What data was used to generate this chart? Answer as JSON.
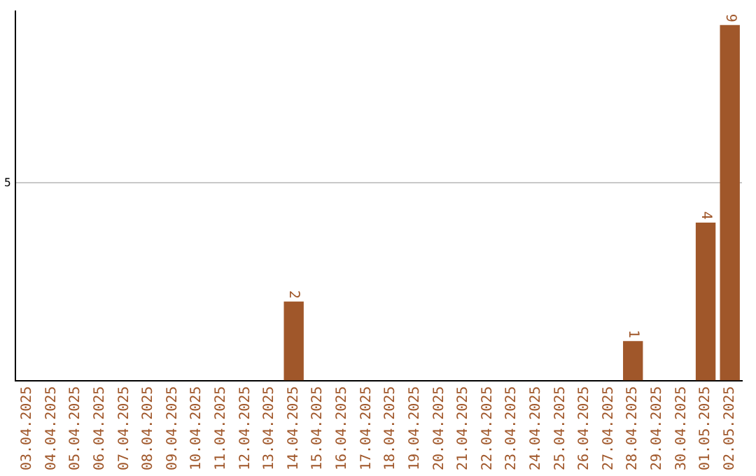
{
  "chart_data": {
    "type": "bar",
    "categories": [
      "03.04.2025",
      "04.04.2025",
      "05.04.2025",
      "06.04.2025",
      "07.04.2025",
      "08.04.2025",
      "09.04.2025",
      "10.04.2025",
      "11.04.2025",
      "12.04.2025",
      "13.04.2025",
      "14.04.2025",
      "15.04.2025",
      "16.04.2025",
      "17.04.2025",
      "18.04.2025",
      "19.04.2025",
      "20.04.2025",
      "21.04.2025",
      "22.04.2025",
      "23.04.2025",
      "24.04.2025",
      "25.04.2025",
      "26.04.2025",
      "27.04.2025",
      "28.04.2025",
      "29.04.2025",
      "30.04.2025",
      "01.05.2025",
      "02.05.2025"
    ],
    "values": [
      0,
      0,
      0,
      0,
      0,
      0,
      0,
      0,
      0,
      0,
      0,
      2,
      0,
      0,
      0,
      0,
      0,
      0,
      0,
      0,
      0,
      0,
      0,
      0,
      0,
      1,
      0,
      0,
      4,
      9
    ],
    "value_labels": [
      null,
      null,
      null,
      null,
      null,
      null,
      null,
      null,
      null,
      null,
      null,
      "2",
      null,
      null,
      null,
      null,
      null,
      null,
      null,
      null,
      null,
      null,
      null,
      null,
      null,
      "1",
      null,
      null,
      "4",
      "9"
    ],
    "color": "#a0572a",
    "ylim": [
      0,
      9.35
    ],
    "yticks": [
      5
    ],
    "grid": "y",
    "legend": false
  }
}
